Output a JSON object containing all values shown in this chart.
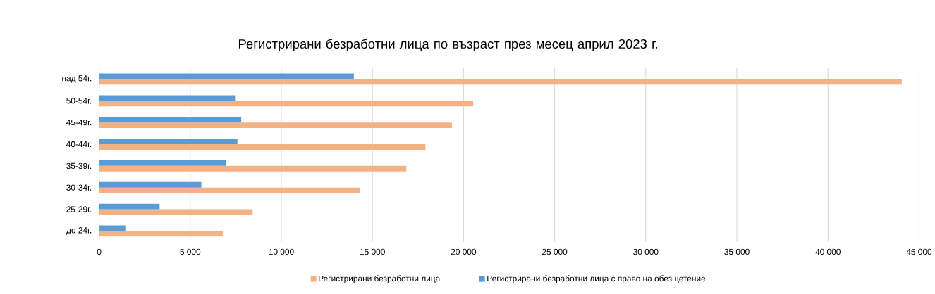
{
  "chart_data": {
    "type": "bar",
    "orientation": "horizontal",
    "title": "Регистрирани безработни лица по възраст през месец април 2023 г.",
    "categories": [
      "над 54г.",
      "50-54г.",
      "45-49г.",
      "40-44г.",
      "35-39г.",
      "30-34г.",
      "25-29г.",
      "до 24г."
    ],
    "series": [
      {
        "name": "Регистрирани безработни лица",
        "color": "#f4b183",
        "values": [
          44050,
          20530,
          19360,
          17910,
          16860,
          14300,
          8430,
          6790
        ]
      },
      {
        "name": "Регистрирани безработни лица с право на обезщетение",
        "color": "#5b9bd5",
        "values": [
          13980,
          7460,
          7800,
          7590,
          6980,
          5610,
          3320,
          1440
        ]
      }
    ],
    "xlim": [
      0,
      45000
    ],
    "xticks": [
      0,
      {
        "value": 5000,
        "label": "5 000"
      },
      {
        "value": 10000,
        "label": "10 000"
      },
      {
        "value": 15000,
        "label": "15 000"
      },
      {
        "value": 20000,
        "label": "20 000"
      },
      {
        "value": 25000,
        "label": "25 000"
      },
      {
        "value": 30000,
        "label": "30 000"
      },
      {
        "value": 35000,
        "label": "35 000"
      },
      {
        "value": 40000,
        "label": "40 000"
      },
      {
        "value": 45000,
        "label": "45 000"
      }
    ],
    "grid": "x",
    "legend": "bottom"
  }
}
